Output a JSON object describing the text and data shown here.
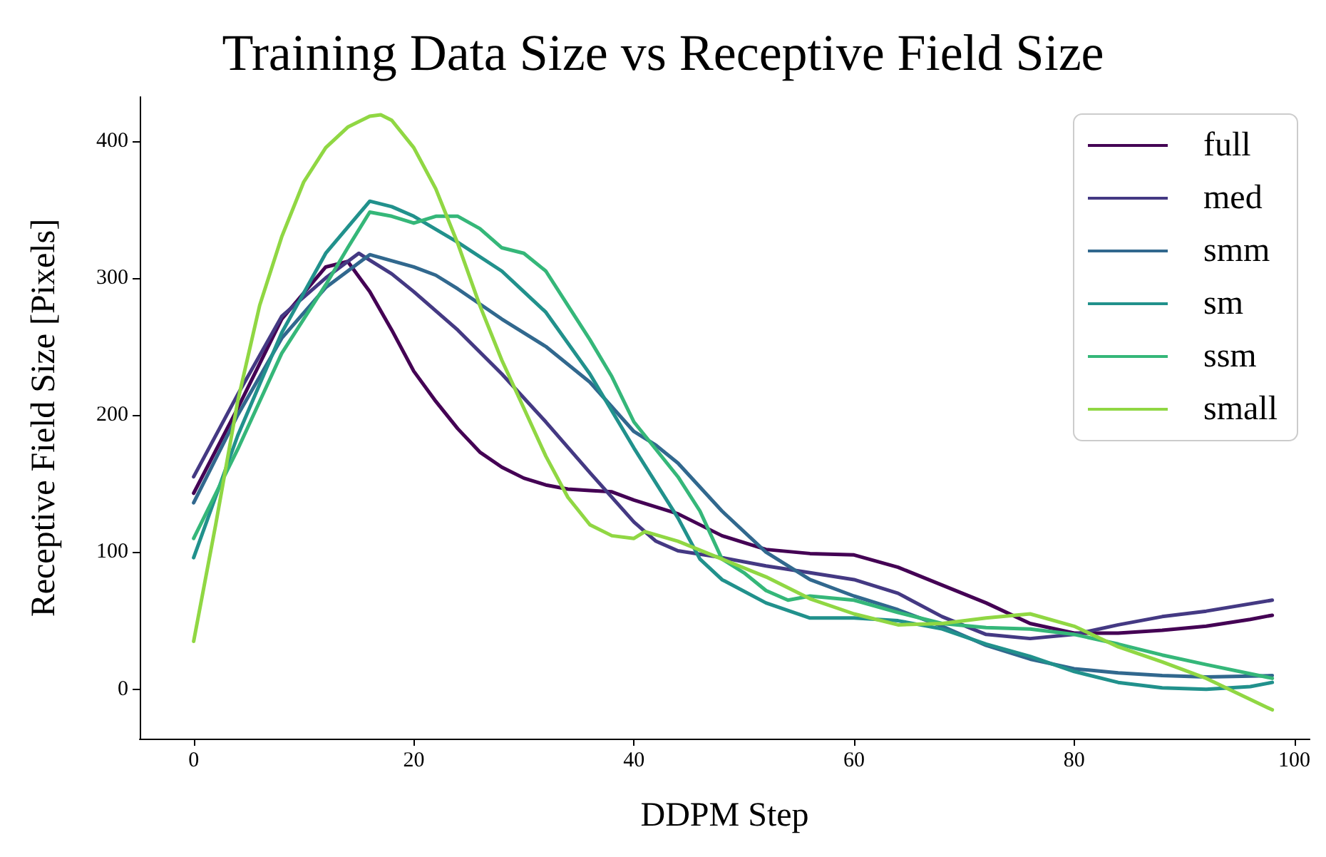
{
  "chart_data": {
    "type": "line",
    "title": "Training Data Size vs Receptive Field Size",
    "xlabel": "DDPM Step",
    "ylabel": "Receptive Field Size [Pixels]",
    "xlim": [
      -4.9,
      101.4
    ],
    "xticks": [
      0,
      20,
      40,
      60,
      80,
      100
    ],
    "ylim": [
      -36,
      432
    ],
    "yticks": [
      0,
      100,
      200,
      300,
      400
    ],
    "grid": false,
    "legend": "top right",
    "series": [
      {
        "name": "full",
        "color": "#440154",
        "x": [
          0,
          4,
          8,
          12,
          14,
          16,
          18,
          20,
          22,
          24,
          26,
          28,
          30,
          32,
          34,
          36,
          38,
          40,
          44,
          48,
          52,
          56,
          60,
          64,
          68,
          72,
          76,
          80,
          84,
          88,
          92,
          96,
          98
        ],
        "values": [
          143,
          205,
          270,
          308,
          312,
          290,
          262,
          232,
          210,
          190,
          173,
          162,
          154,
          149,
          146,
          145,
          144,
          138,
          128,
          112,
          102,
          99,
          98,
          89,
          76,
          63,
          48,
          41,
          41,
          43,
          46,
          51,
          54
        ]
      },
      {
        "name": "med",
        "color": "#443983",
        "x": [
          0,
          4,
          8,
          12,
          15,
          18,
          20,
          24,
          28,
          32,
          36,
          40,
          42,
          44,
          48,
          52,
          56,
          60,
          64,
          68,
          72,
          76,
          80,
          84,
          88,
          92,
          98
        ],
        "values": [
          155,
          215,
          272,
          300,
          318,
          303,
          290,
          262,
          230,
          195,
          158,
          122,
          108,
          101,
          96,
          90,
          85,
          80,
          70,
          53,
          40,
          37,
          40,
          47,
          53,
          57,
          65
        ]
      },
      {
        "name": "smm",
        "color": "#31688e",
        "x": [
          0,
          4,
          8,
          12,
          16,
          20,
          22,
          24,
          28,
          32,
          36,
          40,
          42,
          44,
          48,
          52,
          56,
          60,
          64,
          68,
          72,
          76,
          80,
          84,
          88,
          92,
          98
        ],
        "values": [
          136,
          200,
          256,
          293,
          317,
          308,
          302,
          292,
          270,
          250,
          224,
          188,
          178,
          165,
          130,
          100,
          80,
          68,
          58,
          46,
          32,
          22,
          15,
          12,
          10,
          9,
          10
        ]
      },
      {
        "name": "sm",
        "color": "#21918c",
        "x": [
          0,
          4,
          8,
          12,
          16,
          18,
          20,
          24,
          28,
          30,
          32,
          36,
          40,
          44,
          46,
          48,
          52,
          56,
          60,
          64,
          68,
          72,
          76,
          80,
          84,
          88,
          92,
          96,
          98
        ],
        "values": [
          96,
          185,
          260,
          318,
          356,
          352,
          345,
          326,
          305,
          290,
          275,
          230,
          176,
          125,
          95,
          80,
          63,
          52,
          52,
          50,
          44,
          33,
          24,
          13,
          5,
          1,
          0,
          2,
          5
        ]
      },
      {
        "name": "ssm",
        "color": "#35b779",
        "x": [
          0,
          4,
          8,
          12,
          14,
          16,
          18,
          20,
          22,
          24,
          26,
          28,
          30,
          32,
          34,
          36,
          38,
          40,
          44,
          46,
          48,
          50,
          52,
          54,
          56,
          60,
          64,
          68,
          72,
          76,
          80,
          84,
          88,
          92,
          98
        ],
        "values": [
          110,
          175,
          245,
          295,
          322,
          348,
          345,
          340,
          345,
          345,
          336,
          322,
          318,
          305,
          280,
          255,
          228,
          195,
          155,
          130,
          95,
          85,
          72,
          65,
          68,
          65,
          56,
          48,
          45,
          44,
          40,
          33,
          25,
          18,
          8
        ]
      },
      {
        "name": "small",
        "color": "#90d743",
        "x": [
          0,
          2,
          4,
          6,
          8,
          10,
          12,
          14,
          16,
          17,
          18,
          20,
          22,
          24,
          26,
          28,
          30,
          32,
          34,
          36,
          38,
          40,
          41,
          44,
          48,
          52,
          56,
          60,
          64,
          68,
          72,
          76,
          80,
          84,
          88,
          92,
          98
        ],
        "values": [
          35,
          120,
          210,
          280,
          330,
          370,
          395,
          410,
          418,
          419,
          415,
          395,
          365,
          325,
          280,
          240,
          205,
          170,
          140,
          120,
          112,
          110,
          115,
          108,
          95,
          82,
          66,
          55,
          47,
          48,
          52,
          55,
          46,
          31,
          20,
          8,
          -15
        ]
      }
    ]
  }
}
